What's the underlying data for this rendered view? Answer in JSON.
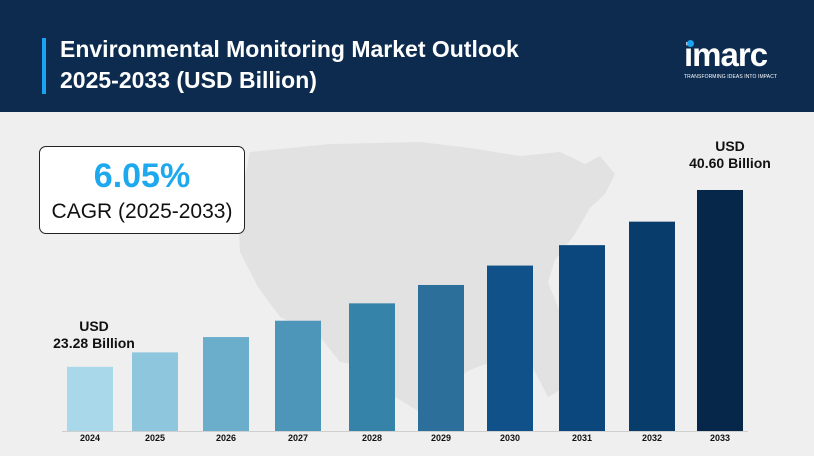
{
  "header": {
    "title_line1": "Environmental Monitoring Market Outlook",
    "title_line2": "2025-2033 (USD Billion)"
  },
  "logo": {
    "text": "imarc",
    "tagline": "TRANSFORMING IDEAS INTO IMPACT"
  },
  "cagr": {
    "value": "6.05%",
    "label": "CAGR (2025-2033)"
  },
  "callouts": {
    "start": {
      "line1": "USD",
      "line2": "23.28 Billion"
    },
    "end": {
      "line1": "USD",
      "line2": "40.60 Billion"
    }
  },
  "colors": {
    "header_bg": "#0c2b4e",
    "accent": "#1aa3f0",
    "bars": [
      "#a9d8ea",
      "#8ec6dd",
      "#6aaecb",
      "#4e96b9",
      "#3683a9",
      "#2c6f9a",
      "#0f5188",
      "#0b477c",
      "#083c6b",
      "#06274a"
    ]
  },
  "chart_data": {
    "type": "bar",
    "categories": [
      "2024",
      "2025",
      "2026",
      "2027",
      "2028",
      "2029",
      "2030",
      "2031",
      "2032",
      "2033"
    ],
    "values": [
      23.28,
      24.7,
      26.2,
      27.8,
      29.5,
      31.3,
      33.2,
      35.2,
      37.5,
      40.6
    ],
    "ylim": [
      17,
      42
    ]
  }
}
